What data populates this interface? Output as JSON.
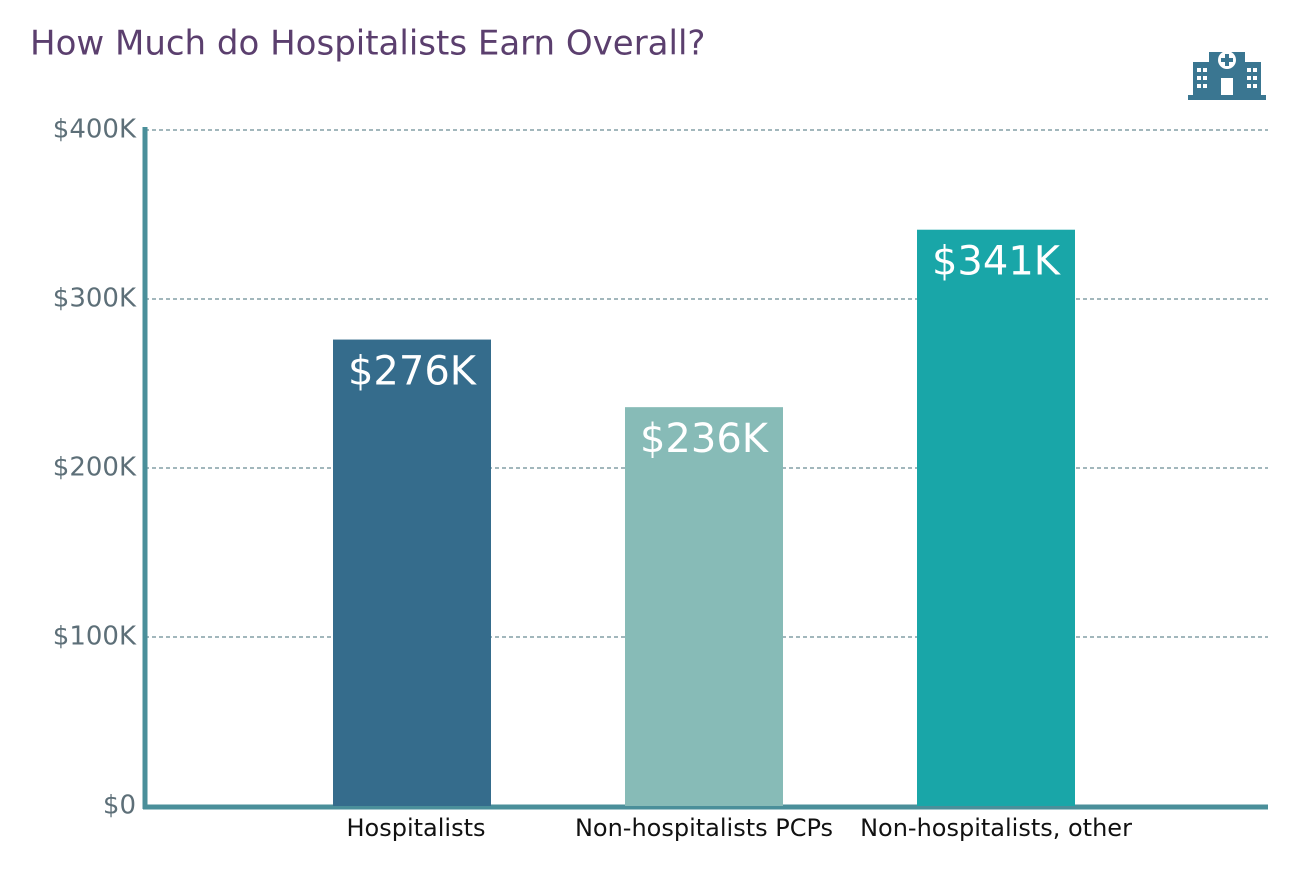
{
  "chart_data": {
    "type": "bar",
    "title": "How Much do Hospitalists Earn Overall?",
    "categories": [
      "Hospitalists",
      "Non-hospitalists PCPs",
      "Non-hospitalists, other"
    ],
    "values": [
      276000,
      236000,
      341000
    ],
    "value_labels": [
      "$276K",
      "$236K",
      "$341K"
    ],
    "colors": [
      "#356c8c",
      "#87bbb7",
      "#19a6a8"
    ],
    "ylim": [
      0,
      400000
    ],
    "yticks": [
      {
        "value": 0,
        "label": "$0"
      },
      {
        "value": 100000,
        "label": "$100K"
      },
      {
        "value": 200000,
        "label": "$200K"
      },
      {
        "value": 300000,
        "label": "$300K"
      },
      {
        "value": 400000,
        "label": "$400K"
      }
    ],
    "grid": true
  }
}
